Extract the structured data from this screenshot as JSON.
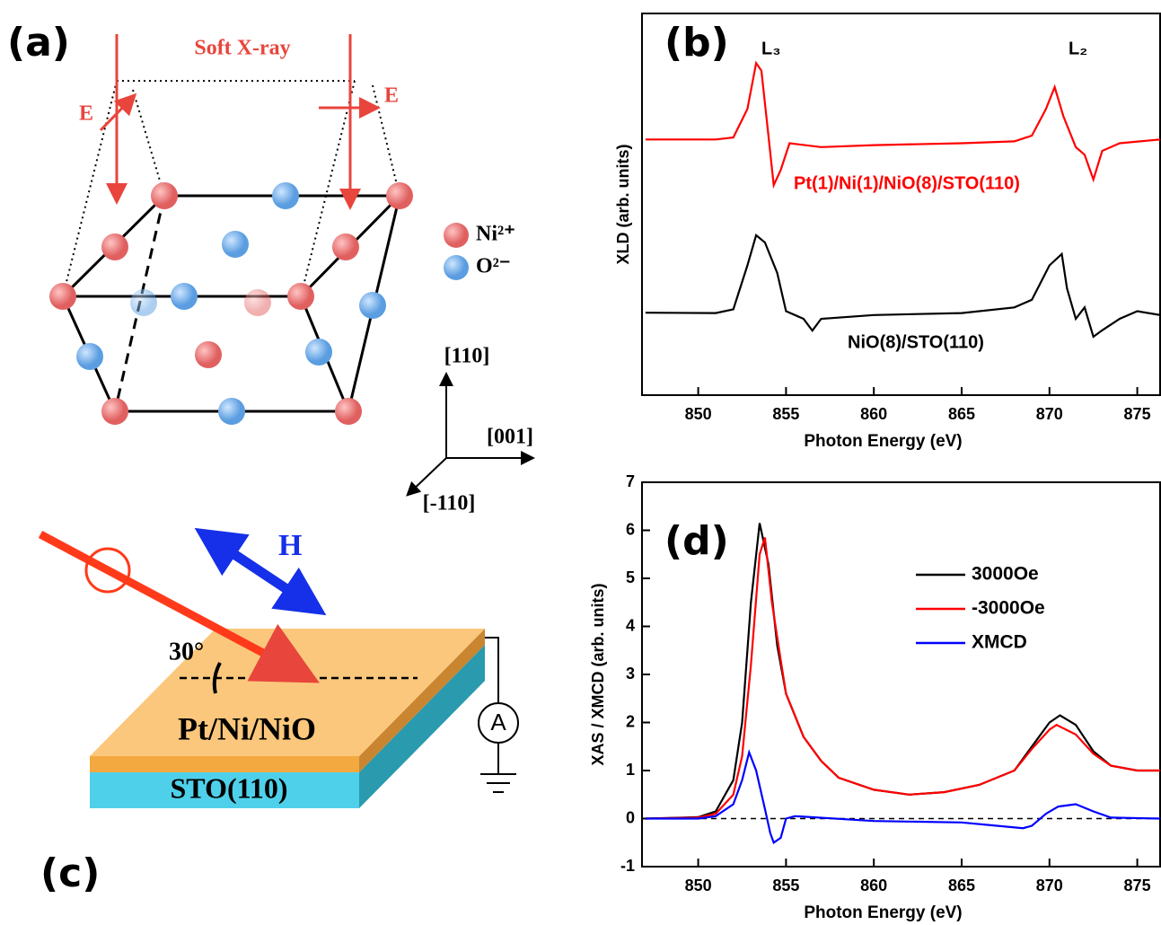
{
  "panel_a": {
    "label": "(a)",
    "beam": "Soft X-ray",
    "polarization": [
      "E",
      "E"
    ],
    "legend": [
      "Ni²⁺",
      "O²⁻"
    ],
    "axes": [
      "[110]",
      "[001]",
      "[-110]"
    ]
  },
  "panel_c": {
    "label": "(c)",
    "field": "H",
    "angle": "30°",
    "layers": [
      "Pt/Ni/NiO",
      "STO(110)"
    ],
    "meter": "A"
  },
  "chart_data": [
    {
      "type": "line",
      "panel_label": "(b)",
      "peak_labels": [
        "L₃",
        "L₂"
      ],
      "x_label": "Photon Energy (eV)",
      "y_label": "XLD (arb. units)",
      "xlim": [
        846.8,
        876.3
      ],
      "xticks": [
        850,
        855,
        860,
        865,
        870,
        875
      ],
      "ylim": [
        0,
        10
      ],
      "series": [
        {
          "name": "Pt(1)/Ni(1)/NiO(8)/STO(110)",
          "color": "#ff0000",
          "x": [
            847,
            851,
            852,
            852.8,
            853.3,
            853.6,
            854,
            854.3,
            854.7,
            855.2,
            857,
            860,
            865,
            868,
            869,
            869.8,
            870.3,
            870.8,
            871.5,
            872,
            872.5,
            873,
            874,
            876.3
          ],
          "values": [
            6.7,
            6.7,
            6.75,
            7.5,
            8.7,
            8.5,
            6.8,
            5.5,
            5.9,
            6.6,
            6.5,
            6.55,
            6.6,
            6.65,
            6.8,
            7.5,
            8.07,
            7.3,
            6.5,
            6.3,
            5.65,
            6.4,
            6.6,
            6.7
          ]
        },
        {
          "name": "NiO(8)/STO(110)",
          "color": "#000000",
          "x": [
            847,
            851,
            852,
            852.8,
            853.3,
            853.8,
            854.5,
            855,
            856,
            856.5,
            857,
            860,
            865,
            868,
            869,
            870,
            870.7,
            871,
            871.5,
            872,
            872.5,
            873,
            874,
            875,
            876.3
          ],
          "values": [
            2.16,
            2.15,
            2.25,
            3.4,
            4.19,
            4.0,
            3.2,
            2.2,
            2.0,
            1.69,
            2.0,
            2.1,
            2.15,
            2.3,
            2.5,
            3.4,
            3.7,
            2.8,
            2.0,
            2.3,
            1.53,
            1.7,
            2.0,
            2.2,
            2.1
          ]
        }
      ]
    },
    {
      "type": "line",
      "panel_label": "(d)",
      "x_label": "Photon Energy (eV)",
      "y_label": "XAS / XMCD (arb. units)",
      "xlim": [
        846.8,
        876.3
      ],
      "xticks": [
        850,
        855,
        860,
        865,
        870,
        875
      ],
      "ylim": [
        -1,
        7
      ],
      "yticks": [
        -1,
        0,
        1,
        2,
        3,
        4,
        5,
        6,
        7
      ],
      "hline": 0,
      "series": [
        {
          "name": "3000Oe",
          "color": "#000000",
          "x": [
            847,
            850,
            851,
            852,
            852.5,
            853,
            853.5,
            854,
            854.5,
            855,
            856,
            857,
            858,
            860,
            862,
            864,
            866,
            868,
            869,
            870,
            870.6,
            871.5,
            872.5,
            873.5,
            875,
            876.3
          ],
          "values": [
            0,
            0.03,
            0.15,
            0.8,
            2,
            4.5,
            6.15,
            5.3,
            3.6,
            2.6,
            1.7,
            1.2,
            0.85,
            0.6,
            0.5,
            0.55,
            0.7,
            1.0,
            1.5,
            2.0,
            2.15,
            1.95,
            1.4,
            1.1,
            1.0,
            1.0
          ]
        },
        {
          "name": "-3000Oe",
          "color": "#ff0000",
          "x": [
            847,
            850,
            851,
            852,
            852.5,
            853,
            853.5,
            853.8,
            854.2,
            854.7,
            855,
            856,
            857,
            858,
            860,
            862,
            864,
            866,
            868,
            869,
            870,
            870.4,
            871.5,
            872.5,
            873.5,
            875,
            876.3
          ],
          "values": [
            0,
            0.02,
            0.1,
            0.5,
            1.3,
            3.2,
            5.5,
            5.85,
            4.5,
            3.3,
            2.6,
            1.7,
            1.2,
            0.85,
            0.6,
            0.5,
            0.55,
            0.7,
            1.0,
            1.45,
            1.85,
            1.95,
            1.75,
            1.35,
            1.1,
            1.0,
            1.0
          ]
        },
        {
          "name": "XMCD",
          "color": "#0000ff",
          "x": [
            847,
            850,
            851,
            852,
            852.5,
            852.9,
            853.3,
            853.8,
            854.1,
            854.3,
            854.7,
            855,
            855.5,
            860,
            865,
            867,
            868.5,
            869,
            869.8,
            870.5,
            871.5,
            872.5,
            873.5,
            876.3
          ],
          "values": [
            0,
            0,
            0.05,
            0.3,
            0.8,
            1.38,
            1.0,
            0.2,
            -0.3,
            -0.5,
            -0.4,
            0,
            0.05,
            -0.05,
            -0.08,
            -0.15,
            -0.2,
            -0.15,
            0.1,
            0.25,
            0.3,
            0.15,
            0.02,
            0
          ]
        }
      ]
    }
  ]
}
